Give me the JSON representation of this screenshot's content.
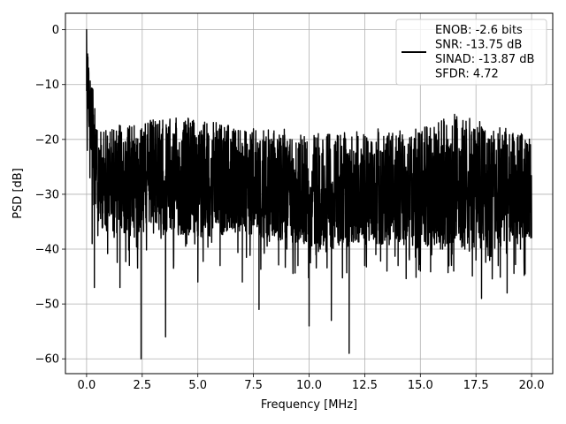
{
  "chart_data": {
    "type": "line",
    "title": "",
    "xlabel": "Frequency [MHz]",
    "ylabel": "PSD [dB]",
    "xlim": [
      -0.95,
      20.95
    ],
    "ylim": [
      -62.7,
      3.0
    ],
    "xticks": [
      0.0,
      2.5,
      5.0,
      7.5,
      10.0,
      12.5,
      15.0,
      17.5,
      20.0
    ],
    "xtick_labels": [
      "0.0",
      "2.5",
      "5.0",
      "7.5",
      "10.0",
      "12.5",
      "15.0",
      "17.5",
      "20.0"
    ],
    "yticks": [
      0,
      -10,
      -20,
      -30,
      -40,
      -50,
      -60
    ],
    "ytick_labels": [
      "0",
      "−10",
      "−20",
      "−30",
      "−40",
      "−50",
      "−60"
    ],
    "grid": true,
    "legend_position": "upper-right",
    "legend_lines": [
      "ENOB: -2.6 bits",
      "SNR: -13.75 dB",
      "SINAD: -13.87 dB",
      "SFDR: 4.72"
    ],
    "series": [
      {
        "color": "#000000",
        "note_on_values": "dense noise-like PSD; values are a sampled approximation of the visible trace",
        "x": [
          0.0,
          0.03,
          0.06,
          0.1,
          0.15,
          0.2,
          0.25,
          0.3,
          0.35,
          0.4,
          0.5,
          0.6,
          0.7,
          0.8,
          0.9,
          1.0,
          1.2,
          1.5,
          1.6,
          2.0,
          2.3,
          2.45,
          2.5,
          3.0,
          3.5,
          3.55,
          4.0,
          4.5,
          5.0,
          5.5,
          6.0,
          6.5,
          7.0,
          7.5,
          7.75,
          8.0,
          8.5,
          9.0,
          9.5,
          10.0,
          10.5,
          11.0,
          11.5,
          11.8,
          12.0,
          12.5,
          13.0,
          13.5,
          14.0,
          14.5,
          15.0,
          15.5,
          16.0,
          16.5,
          17.0,
          17.5,
          17.75,
          18.0,
          18.5,
          18.9,
          19.0,
          19.5,
          20.0
        ],
        "y": [
          0,
          -22,
          -5,
          -12,
          -27,
          -18,
          -39,
          -24,
          -47,
          -26,
          -30,
          -22,
          -36,
          -25,
          -33,
          -28,
          -29,
          -47,
          -30,
          -27,
          -40,
          -60,
          -29,
          -30,
          -35,
          -56,
          -31,
          -39,
          -46,
          -33,
          -43,
          -36,
          -46,
          -33,
          -51,
          -33,
          -37,
          -40,
          -43,
          -54,
          -40,
          -53,
          -40,
          -59,
          -38,
          -43,
          -41,
          -44,
          -43,
          -41,
          -44,
          -40,
          -40,
          -44,
          -40,
          -42,
          -49,
          -38,
          -43,
          -48,
          -36,
          -40,
          -38
        ],
        "envelope_top": [
          [
            0.0,
            0
          ],
          [
            0.5,
            -19
          ],
          [
            1.0,
            -17
          ],
          [
            2.0,
            -17
          ],
          [
            3.0,
            -16
          ],
          [
            4.0,
            -16
          ],
          [
            5.0,
            -16
          ],
          [
            7.0,
            -18
          ],
          [
            9.0,
            -18
          ],
          [
            11.0,
            -19
          ],
          [
            13.0,
            -18
          ],
          [
            15.0,
            -18
          ],
          [
            16.7,
            -15
          ],
          [
            18.0,
            -17
          ],
          [
            20.0,
            -19
          ]
        ],
        "envelope_bottom": [
          [
            0.0,
            -15
          ],
          [
            0.5,
            -36
          ],
          [
            1.0,
            -37
          ],
          [
            2.0,
            -38
          ],
          [
            3.0,
            -37
          ],
          [
            4.0,
            -38
          ],
          [
            5.0,
            -38
          ],
          [
            7.0,
            -37
          ],
          [
            9.0,
            -39
          ],
          [
            11.0,
            -40
          ],
          [
            13.0,
            -39
          ],
          [
            15.0,
            -40
          ],
          [
            17.0,
            -40
          ],
          [
            20.0,
            -39
          ]
        ]
      }
    ]
  }
}
